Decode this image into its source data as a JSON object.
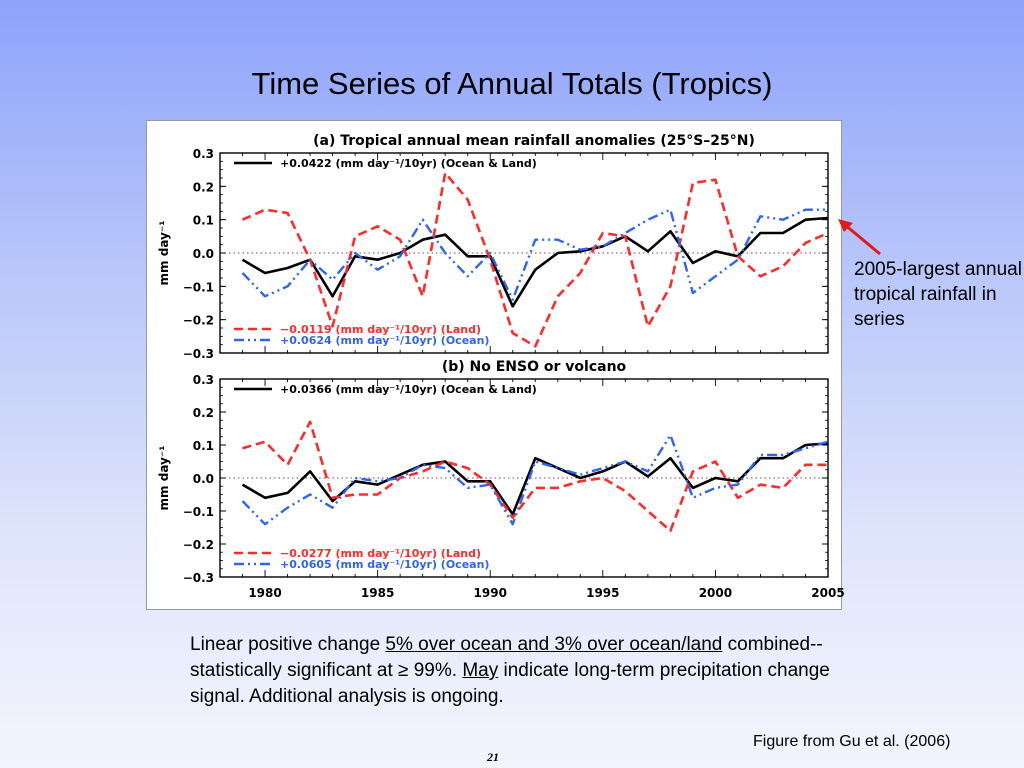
{
  "slide": {
    "title": "Time Series of Annual Totals (Tropics)",
    "annotation": "2005-largest annual tropical rainfall in series",
    "caption": {
      "part1": "Linear positive change ",
      "underline1": "5% over ocean and 3% over ocean/land",
      "part2": " combined--statistically significant at ≥ 99%.  ",
      "underline2": "May",
      "part3": " indicate long-term precipitation change signal.  Additional analysis is ongoing."
    },
    "credit": "Figure from Gu et al. (2006)",
    "page_number": "21"
  },
  "colors": {
    "combined": "#000000",
    "land": "#ff2a2a",
    "ocean": "#2f64f0",
    "zero_line": "#993366",
    "arrow": "#e31a1c"
  },
  "chart_data": [
    {
      "type": "line",
      "title": "(a) Tropical annual mean rainfall anomalies (25°S–25°N)",
      "ylabel": "mm day⁻¹",
      "xlabel": "",
      "xlim": [
        1978,
        2005
      ],
      "ylim": [
        -0.3,
        0.3
      ],
      "yticks": [
        "0.3",
        "0.2",
        "0.1",
        "0.0",
        "−0.1",
        "−0.2",
        "−0.3"
      ],
      "xticks": [],
      "grid": false,
      "x": [
        1979,
        1980,
        1981,
        1982,
        1983,
        1984,
        1985,
        1986,
        1987,
        1988,
        1989,
        1990,
        1991,
        1992,
        1993,
        1994,
        1995,
        1996,
        1997,
        1998,
        1999,
        2000,
        2001,
        2002,
        2003,
        2004,
        2005
      ],
      "series": [
        {
          "name": "+0.0422 (mm day⁻¹/10yr) (Ocean & Land)",
          "style": "solid",
          "values": [
            -0.02,
            -0.06,
            -0.045,
            -0.02,
            -0.13,
            -0.01,
            -0.02,
            0.0,
            0.04,
            0.055,
            -0.01,
            -0.01,
            -0.16,
            -0.05,
            0.0,
            0.005,
            0.02,
            0.05,
            0.005,
            0.065,
            -0.03,
            0.005,
            -0.01,
            0.06,
            0.06,
            0.1,
            0.105
          ]
        },
        {
          "name": "−0.0119 (mm day⁻¹/10yr) (Land)",
          "style": "dashed",
          "values": [
            0.1,
            0.13,
            0.12,
            -0.02,
            -0.22,
            0.05,
            0.08,
            0.04,
            -0.13,
            0.24,
            0.16,
            -0.02,
            -0.24,
            -0.28,
            -0.13,
            -0.06,
            0.06,
            0.05,
            -0.22,
            -0.1,
            0.21,
            0.22,
            -0.01,
            -0.07,
            -0.04,
            0.03,
            0.06
          ]
        },
        {
          "name": "+0.0624 (mm day⁻¹/10yr) (Ocean)",
          "style": "dash-dot",
          "values": [
            -0.06,
            -0.13,
            -0.1,
            -0.02,
            -0.08,
            0.0,
            -0.05,
            -0.01,
            0.1,
            0.0,
            -0.07,
            0.0,
            -0.14,
            0.04,
            0.04,
            0.01,
            0.02,
            0.06,
            0.1,
            0.13,
            -0.12,
            -0.07,
            -0.02,
            0.11,
            0.1,
            0.13,
            0.13
          ]
        }
      ]
    },
    {
      "type": "line",
      "title": "(b) No ENSO or volcano",
      "ylabel": "mm day⁻¹",
      "xlabel": "",
      "xlim": [
        1978,
        2005
      ],
      "ylim": [
        -0.3,
        0.3
      ],
      "yticks": [
        "0.3",
        "0.2",
        "0.1",
        "0.0",
        "−0.1",
        "−0.2",
        "−0.3"
      ],
      "xticks": [
        "1980",
        "1985",
        "1990",
        "1995",
        "2000",
        "2005"
      ],
      "grid": false,
      "x": [
        1979,
        1980,
        1981,
        1982,
        1983,
        1984,
        1985,
        1986,
        1987,
        1988,
        1989,
        1990,
        1991,
        1992,
        1993,
        1994,
        1995,
        1996,
        1997,
        1998,
        1999,
        2000,
        2001,
        2002,
        2003,
        2004,
        2005
      ],
      "series": [
        {
          "name": "+0.0366 (mm day⁻¹/10yr) (Ocean & Land)",
          "style": "solid",
          "values": [
            -0.02,
            -0.06,
            -0.045,
            0.02,
            -0.07,
            -0.01,
            -0.02,
            0.01,
            0.04,
            0.05,
            -0.01,
            -0.01,
            -0.11,
            0.06,
            0.03,
            0.0,
            0.02,
            0.05,
            0.005,
            0.06,
            -0.03,
            0.0,
            -0.01,
            0.06,
            0.06,
            0.1,
            0.105
          ]
        },
        {
          "name": "−0.0277 (mm day⁻¹/10yr) (Land)",
          "style": "dashed",
          "values": [
            0.09,
            0.11,
            0.04,
            0.17,
            -0.06,
            -0.05,
            -0.05,
            0.0,
            0.02,
            0.05,
            0.03,
            -0.02,
            -0.12,
            -0.03,
            -0.03,
            -0.01,
            0.0,
            -0.04,
            -0.1,
            -0.16,
            0.02,
            0.05,
            -0.06,
            -0.02,
            -0.03,
            0.04,
            0.04
          ]
        },
        {
          "name": "+0.0605 (mm day⁻¹/10yr) (Ocean)",
          "style": "dash-dot",
          "values": [
            -0.07,
            -0.14,
            -0.09,
            -0.05,
            -0.09,
            0.0,
            -0.01,
            0.0,
            0.04,
            0.03,
            -0.03,
            -0.02,
            -0.14,
            0.05,
            0.03,
            0.01,
            0.03,
            0.05,
            0.02,
            0.13,
            -0.06,
            -0.03,
            -0.02,
            0.07,
            0.07,
            0.09,
            0.11
          ]
        }
      ]
    }
  ]
}
